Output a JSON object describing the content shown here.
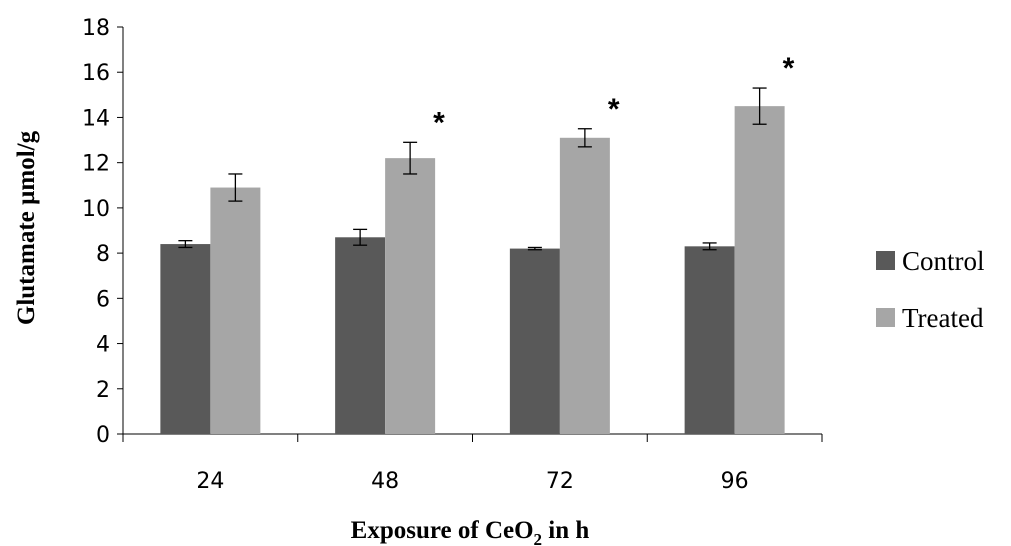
{
  "chart_data": {
    "type": "bar",
    "categories": [
      "24",
      "48",
      "72",
      "96"
    ],
    "series": [
      {
        "name": "Control",
        "values": [
          8.4,
          8.7,
          8.2,
          8.3
        ],
        "errors": [
          0.15,
          0.35,
          0.05,
          0.15
        ],
        "color": "#595959"
      },
      {
        "name": "Treated",
        "values": [
          10.9,
          12.2,
          13.1,
          14.5
        ],
        "errors": [
          0.6,
          0.7,
          0.4,
          0.8
        ],
        "color": "#a6a6a6"
      }
    ],
    "significance": [
      "",
      "*",
      "*",
      "*"
    ],
    "ylabel": "Glutamate µmol/g",
    "xlabel": {
      "text": "Exposure of CeO",
      "subscript": "2",
      "suffix": " in h"
    },
    "ylim": [
      0,
      18
    ],
    "yticks": [
      0,
      2,
      4,
      6,
      8,
      10,
      12,
      14,
      16,
      18
    ],
    "grid": false,
    "legend_position": "right"
  }
}
